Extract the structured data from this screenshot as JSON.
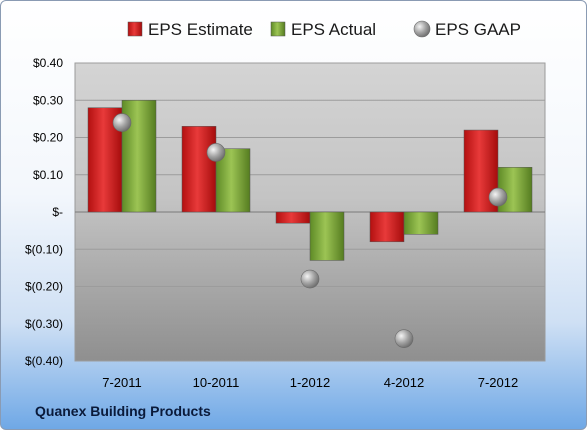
{
  "company_name": "Quanex Building Products",
  "chart_data": {
    "type": "bar",
    "categories": [
      "7-2011",
      "10-2011",
      "1-2012",
      "4-2012",
      "7-2012"
    ],
    "series": [
      {
        "name": "EPS Estimate",
        "kind": "bar",
        "color": "#d42020",
        "values": [
          0.28,
          0.23,
          -0.03,
          -0.08,
          0.22
        ]
      },
      {
        "name": "EPS Actual",
        "kind": "bar",
        "color": "#7eaa3a",
        "values": [
          0.3,
          0.17,
          -0.13,
          -0.06,
          0.12
        ]
      },
      {
        "name": "EPS GAAP",
        "kind": "marker",
        "color": "#a8a8a8",
        "values": [
          0.24,
          0.16,
          -0.18,
          -0.34,
          0.04
        ]
      }
    ],
    "ylim": [
      -0.4,
      0.4
    ],
    "yticks": [
      {
        "value": 0.4,
        "label": "$0.40"
      },
      {
        "value": 0.3,
        "label": "$0.30"
      },
      {
        "value": 0.2,
        "label": "$0.20"
      },
      {
        "value": 0.1,
        "label": "$0.10"
      },
      {
        "value": 0.0,
        "label": "$-"
      },
      {
        "value": -0.1,
        "label": "$(0.10)"
      },
      {
        "value": -0.2,
        "label": "$(0.20)"
      },
      {
        "value": -0.3,
        "label": "$(0.30)"
      },
      {
        "value": -0.4,
        "label": "$(0.40)"
      }
    ],
    "grid": true,
    "legend_position": "top"
  }
}
